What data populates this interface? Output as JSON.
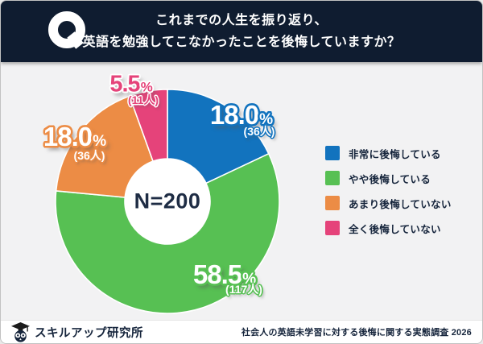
{
  "header": {
    "q_mark": "Q",
    "title_line1": "これまでの人生を振り返り、",
    "title_line2": "英語を勉強してこなかったことを後悔していますか？"
  },
  "chart_data": {
    "type": "pie",
    "subtype": "donut",
    "title": "これまでの人生を振り返り、英語を勉強してこなかったことを後悔していますか？",
    "center_label": "N=200",
    "sample_size": 200,
    "start_angle_deg": 0,
    "direction": "clockwise",
    "legend_position": "right",
    "segments": [
      {
        "label": "非常に後悔している",
        "percent": 18.0,
        "count": 36,
        "value_text": "18.0",
        "unit": "%",
        "count_text": "(36人)",
        "color": "#1273be"
      },
      {
        "label": "やや後悔している",
        "percent": 58.5,
        "count": 117,
        "value_text": "58.5",
        "unit": "%",
        "count_text": "(117人)",
        "color": "#57c053"
      },
      {
        "label": "あまり後悔していない",
        "percent": 18.0,
        "count": 36,
        "value_text": "18.0",
        "unit": "%",
        "count_text": "(36人)",
        "color": "#ec8c45"
      },
      {
        "label": "全く後悔していない",
        "percent": 5.5,
        "count": 11,
        "value_text": "5.5",
        "unit": "%",
        "count_text": "(11人)",
        "color": "#e5437a"
      }
    ]
  },
  "footer": {
    "brand": "スキルアップ研究所",
    "source": "社会人の英語未学習に対する後悔に関する実態調査 2026"
  },
  "colors": {
    "header_bg": "#0f1c30",
    "chart_bg": "#f2f2f3",
    "text_navy": "#16253c",
    "donut_hole": "#ffffff"
  }
}
